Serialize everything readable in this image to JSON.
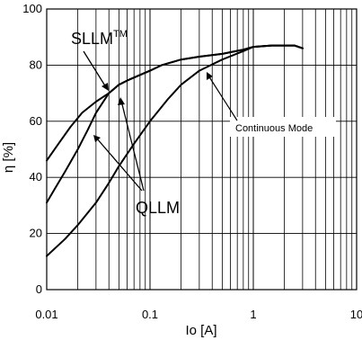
{
  "chart_data": {
    "type": "line",
    "x_scale": "log",
    "xlabel": "Io [A]",
    "ylabel": "η [%]",
    "xlim": [
      0.01,
      10
    ],
    "ylim": [
      0,
      100
    ],
    "x_ticks": [
      {
        "value": 0.01,
        "label": "0.01"
      },
      {
        "value": 0.1,
        "label": "0.1"
      },
      {
        "value": 1,
        "label": "1"
      },
      {
        "value": 10,
        "label": "10"
      }
    ],
    "y_ticks": [
      {
        "value": 0,
        "label": "0"
      },
      {
        "value": 20,
        "label": "20"
      },
      {
        "value": 40,
        "label": "40"
      },
      {
        "value": 60,
        "label": "60"
      },
      {
        "value": 80,
        "label": "80"
      },
      {
        "value": 100,
        "label": "100"
      }
    ],
    "grid": true,
    "series": [
      {
        "name": "SLLM",
        "x": [
          0.01,
          0.013,
          0.017,
          0.022,
          0.03,
          0.04,
          0.05,
          0.06,
          0.08,
          0.1,
          0.13,
          0.2,
          0.3,
          0.5,
          0.8,
          1.0,
          1.5,
          2.0,
          2.5,
          3.0
        ],
        "y": [
          46,
          52,
          58,
          63,
          67,
          70,
          73,
          74.5,
          76.5,
          78,
          80,
          82,
          83,
          84,
          85.5,
          86.5,
          87,
          87,
          87,
          86
        ]
      },
      {
        "name": "QLLM",
        "x": [
          0.01,
          0.012,
          0.015,
          0.02,
          0.025,
          0.03,
          0.04,
          0.05,
          0.06,
          0.08,
          0.1,
          0.13,
          0.2,
          0.3,
          0.5,
          0.8,
          1.0,
          1.5,
          2.0,
          2.5,
          3.0
        ],
        "y": [
          31,
          36,
          42,
          50,
          57,
          63,
          70,
          73,
          74.5,
          76.5,
          78,
          80,
          82,
          83,
          84,
          85.5,
          86.5,
          87,
          87,
          87,
          86
        ]
      },
      {
        "name": "Continuous Mode",
        "x": [
          0.01,
          0.015,
          0.02,
          0.03,
          0.04,
          0.05,
          0.07,
          0.1,
          0.15,
          0.2,
          0.3,
          0.5,
          0.8,
          1.0,
          1.5,
          2.0,
          2.5,
          3.0
        ],
        "y": [
          12,
          18,
          23,
          31,
          38,
          44,
          52,
          60,
          68,
          73,
          78,
          82,
          85,
          86.5,
          87,
          87,
          87,
          86
        ]
      }
    ],
    "annotations": [
      {
        "text": "SLLM",
        "superscript": "TM"
      },
      {
        "text": "QLLM"
      },
      {
        "text": "Continuous Mode"
      }
    ]
  }
}
